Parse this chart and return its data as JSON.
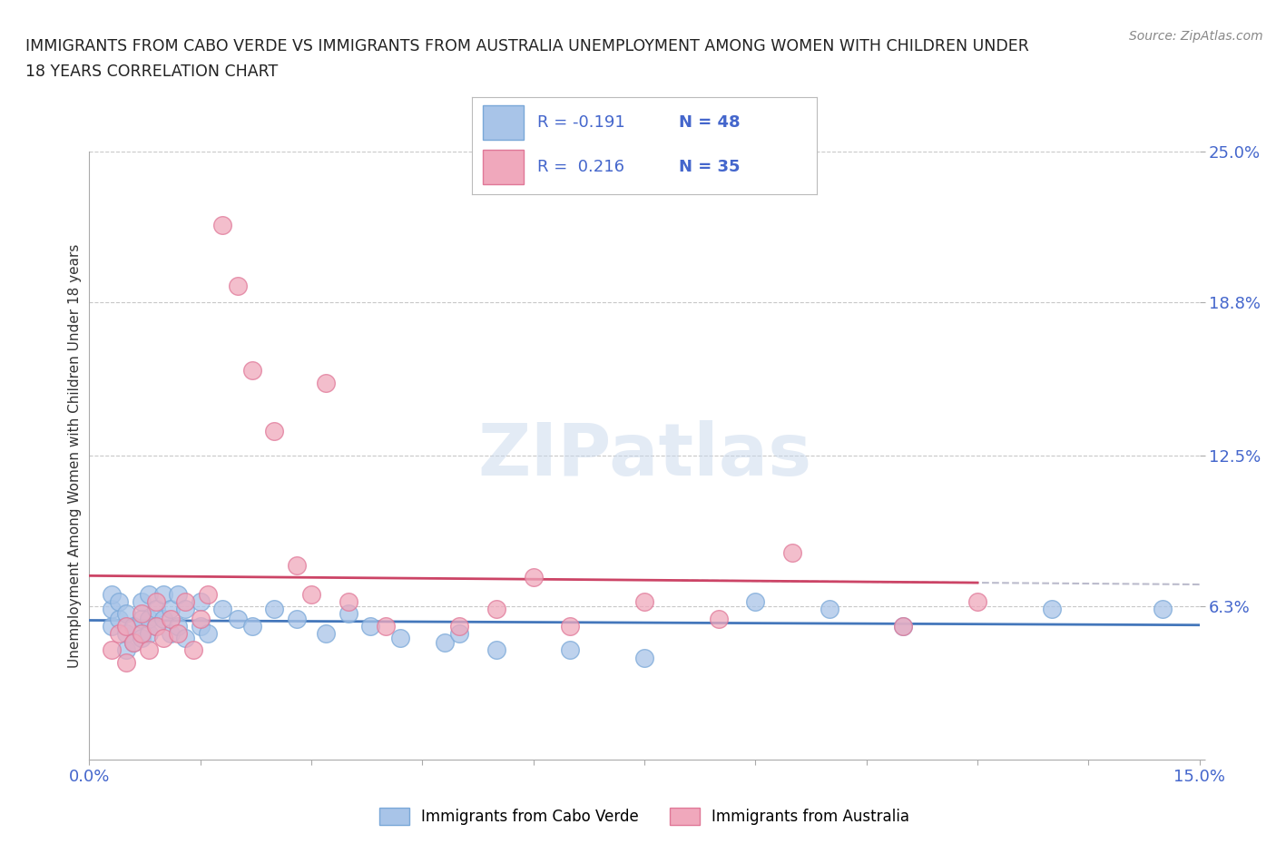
{
  "title_line1": "IMMIGRANTS FROM CABO VERDE VS IMMIGRANTS FROM AUSTRALIA UNEMPLOYMENT AMONG WOMEN WITH CHILDREN UNDER",
  "title_line2": "18 YEARS CORRELATION CHART",
  "source": "Source: ZipAtlas.com",
  "ylabel": "Unemployment Among Women with Children Under 18 years",
  "xlim": [
    0.0,
    0.15
  ],
  "ylim": [
    0.0,
    0.25
  ],
  "xticks": [
    0.0,
    0.015,
    0.03,
    0.045,
    0.06,
    0.075,
    0.09,
    0.105,
    0.12,
    0.135,
    0.15
  ],
  "xticklabels": [
    "0.0%",
    "",
    "",
    "",
    "",
    "",
    "",
    "",
    "",
    "",
    "15.0%"
  ],
  "ytick_values": [
    0.0,
    0.063,
    0.125,
    0.188,
    0.25
  ],
  "ytick_labels": [
    "",
    "6.3%",
    "12.5%",
    "18.8%",
    "25.0%"
  ],
  "grid_color": "#c8c8c8",
  "background_color": "#ffffff",
  "cabo_verde_color": "#a8c4e8",
  "australia_color": "#f0a8bc",
  "cabo_verde_edge_color": "#7aa8d8",
  "australia_edge_color": "#e07898",
  "cabo_verde_line_color": "#4477bb",
  "australia_line_color": "#cc4466",
  "dash_line_color": "#bbbbcc",
  "legend_cabo_R": "R = -0.191",
  "legend_cabo_N": "N = 48",
  "legend_aus_R": "R =  0.216",
  "legend_aus_N": "N = 35",
  "cabo_verde_R": -0.191,
  "cabo_verde_N": 48,
  "australia_R": 0.216,
  "australia_N": 35,
  "cabo_verde_x": [
    0.003,
    0.003,
    0.003,
    0.004,
    0.004,
    0.005,
    0.005,
    0.005,
    0.006,
    0.006,
    0.007,
    0.007,
    0.007,
    0.008,
    0.008,
    0.008,
    0.009,
    0.009,
    0.01,
    0.01,
    0.011,
    0.011,
    0.012,
    0.012,
    0.013,
    0.013,
    0.015,
    0.015,
    0.016,
    0.018,
    0.02,
    0.022,
    0.025,
    0.028,
    0.032,
    0.035,
    0.038,
    0.042,
    0.048,
    0.05,
    0.055,
    0.065,
    0.075,
    0.09,
    0.1,
    0.11,
    0.13,
    0.145
  ],
  "cabo_verde_y": [
    0.055,
    0.062,
    0.068,
    0.058,
    0.065,
    0.045,
    0.052,
    0.06,
    0.048,
    0.055,
    0.05,
    0.058,
    0.065,
    0.052,
    0.058,
    0.068,
    0.055,
    0.062,
    0.058,
    0.068,
    0.052,
    0.062,
    0.055,
    0.068,
    0.05,
    0.062,
    0.055,
    0.065,
    0.052,
    0.062,
    0.058,
    0.055,
    0.062,
    0.058,
    0.052,
    0.06,
    0.055,
    0.05,
    0.048,
    0.052,
    0.045,
    0.045,
    0.042,
    0.065,
    0.062,
    0.055,
    0.062,
    0.062
  ],
  "australia_x": [
    0.003,
    0.004,
    0.005,
    0.005,
    0.006,
    0.007,
    0.007,
    0.008,
    0.009,
    0.009,
    0.01,
    0.011,
    0.012,
    0.013,
    0.014,
    0.015,
    0.016,
    0.018,
    0.02,
    0.022,
    0.025,
    0.028,
    0.03,
    0.032,
    0.035,
    0.04,
    0.05,
    0.055,
    0.06,
    0.065,
    0.075,
    0.085,
    0.095,
    0.11,
    0.12
  ],
  "australia_y": [
    0.045,
    0.052,
    0.04,
    0.055,
    0.048,
    0.052,
    0.06,
    0.045,
    0.055,
    0.065,
    0.05,
    0.058,
    0.052,
    0.065,
    0.045,
    0.058,
    0.068,
    0.22,
    0.195,
    0.16,
    0.135,
    0.08,
    0.068,
    0.155,
    0.065,
    0.055,
    0.055,
    0.062,
    0.075,
    0.055,
    0.065,
    0.058,
    0.085,
    0.055,
    0.065
  ]
}
